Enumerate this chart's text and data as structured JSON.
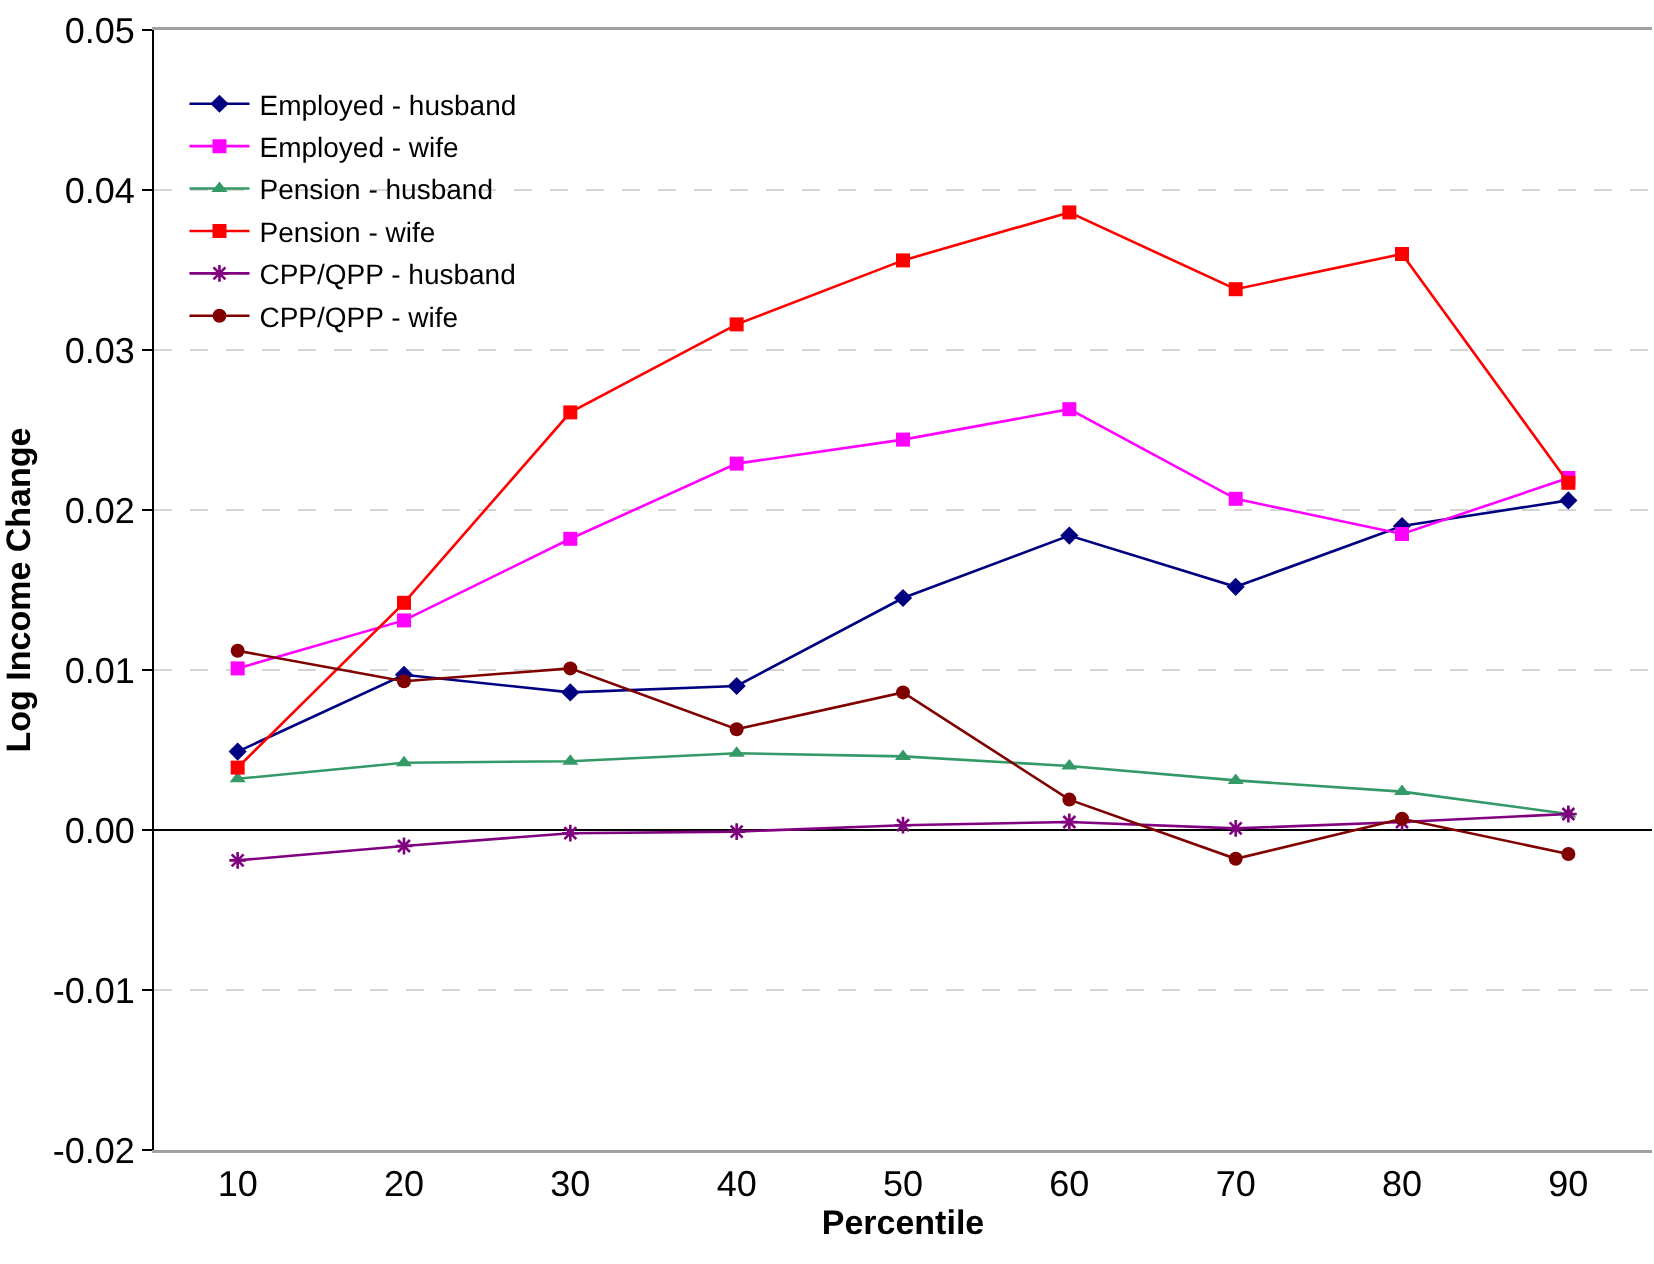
{
  "chart_data": {
    "type": "line",
    "xlabel": "Percentile",
    "ylabel": "Log Income Change",
    "categories": [
      "10",
      "20",
      "30",
      "40",
      "50",
      "60",
      "70",
      "80",
      "90"
    ],
    "series": [
      {
        "name": "Employed - husband",
        "color": "#000080",
        "marker": "diamond",
        "values": [
          0.0049,
          0.0097,
          0.0086,
          0.009,
          0.0145,
          0.0184,
          0.0152,
          0.019,
          0.0206
        ]
      },
      {
        "name": "Employed - wife",
        "color": "#ff00ff",
        "marker": "square",
        "values": [
          0.0101,
          0.0131,
          0.0182,
          0.0229,
          0.0244,
          0.0263,
          0.0207,
          0.0185,
          0.022
        ]
      },
      {
        "name": "Pension - husband",
        "color": "#339966",
        "marker": "triangle",
        "values": [
          0.0032,
          0.0042,
          0.0043,
          0.0048,
          0.0046,
          0.004,
          0.0031,
          0.0024,
          0.001
        ]
      },
      {
        "name": "Pension - wife",
        "color": "#ff0000",
        "marker": "square",
        "values": [
          0.0039,
          0.0142,
          0.0261,
          0.0316,
          0.0356,
          0.0386,
          0.0338,
          0.036,
          0.0217
        ]
      },
      {
        "name": "CPP/QPP - husband",
        "color": "#800080",
        "marker": "cross",
        "values": [
          -0.0019,
          -0.001,
          -0.0002,
          -0.0001,
          0.0003,
          0.0005,
          0.0001,
          0.0005,
          0.001
        ]
      },
      {
        "name": "CPP/QPP - wife",
        "color": "#800000",
        "marker": "circle",
        "values": [
          0.0112,
          0.0093,
          0.0101,
          0.0063,
          0.0086,
          0.0019,
          -0.0018,
          0.0007,
          -0.0015
        ]
      }
    ],
    "ylim": [
      -0.02,
      0.05
    ],
    "yticks": [
      -0.02,
      -0.01,
      {
        "value": 0,
        "label": "0.00"
      },
      0.01,
      0.02,
      0.03,
      0.04,
      0.05
    ],
    "grid": "y",
    "legend": "top left",
    "line_style": "solid"
  }
}
